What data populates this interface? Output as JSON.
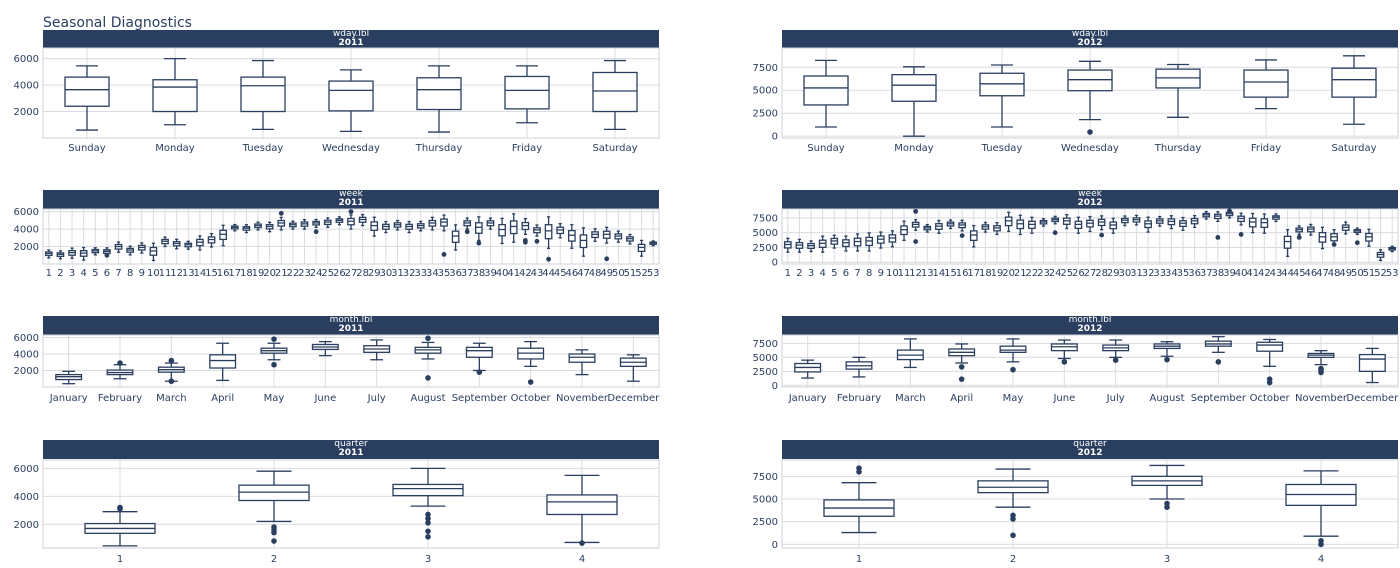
{
  "title": "Seasonal Diagnostics",
  "colors": {
    "strip": "#2a3f5f",
    "box": "#2a3f5f",
    "grid": "#d9dce1"
  },
  "chart_data": [
    {
      "type": "box",
      "row": 1,
      "col": 1,
      "strip": [
        "wday.lbl",
        "2011"
      ],
      "ylim": [
        0,
        6800
      ],
      "yticks": [
        2000,
        4000,
        6000
      ],
      "categories": [
        "Sunday",
        "Monday",
        "Tuesday",
        "Wednesday",
        "Thursday",
        "Friday",
        "Saturday"
      ],
      "boxes": [
        {
          "min": 600,
          "q1": 2400,
          "med": 3650,
          "q3": 4600,
          "max": 5450
        },
        {
          "min": 1000,
          "q1": 2000,
          "med": 3850,
          "q3": 4400,
          "max": 6000
        },
        {
          "min": 650,
          "q1": 2000,
          "med": 3950,
          "q3": 4600,
          "max": 5850
        },
        {
          "min": 500,
          "q1": 2050,
          "med": 3600,
          "q3": 4300,
          "max": 5150
        },
        {
          "min": 450,
          "q1": 2150,
          "med": 3650,
          "q3": 4550,
          "max": 5450
        },
        {
          "min": 1150,
          "q1": 2200,
          "med": 3600,
          "q3": 4650,
          "max": 5450
        },
        {
          "min": 650,
          "q1": 2000,
          "med": 3550,
          "q3": 4950,
          "max": 5850
        }
      ]
    },
    {
      "type": "box",
      "row": 1,
      "col": 2,
      "strip": [
        "wday.lbl",
        "2012"
      ],
      "ylim": [
        -200,
        9600
      ],
      "yticks": [
        0,
        2500,
        5000,
        7500
      ],
      "categories": [
        "Sunday",
        "Monday",
        "Tuesday",
        "Wednesday",
        "Thursday",
        "Friday",
        "Saturday"
      ],
      "boxes": [
        {
          "min": 1000,
          "q1": 3400,
          "med": 5250,
          "q3": 6550,
          "max": 8250
        },
        {
          "min": 0,
          "q1": 3800,
          "med": 5550,
          "q3": 6700,
          "max": 7550
        },
        {
          "min": 1000,
          "q1": 4400,
          "med": 5700,
          "q3": 6850,
          "max": 7750,
          "outliers": []
        },
        {
          "min": 1800,
          "q1": 4950,
          "med": 6150,
          "q3": 7200,
          "max": 8150,
          "outliers": [
            450
          ]
        },
        {
          "min": 2050,
          "q1": 5250,
          "med": 6350,
          "q3": 7300,
          "max": 7800
        },
        {
          "min": 3000,
          "q1": 4250,
          "med": 5900,
          "q3": 7200,
          "max": 8300
        },
        {
          "min": 1300,
          "q1": 4250,
          "med": 6150,
          "q3": 7400,
          "max": 8750
        }
      ]
    },
    {
      "type": "box",
      "row": 2,
      "col": 1,
      "strip": [
        "week",
        "2011"
      ],
      "ylim": [
        0,
        6300
      ],
      "yticks": [
        2000,
        4000,
        6000
      ],
      "categories": [
        "1",
        "2",
        "3",
        "4",
        "5",
        "6",
        "7",
        "8",
        "9",
        "10",
        "11",
        "12",
        "13",
        "14",
        "15",
        "16",
        "17",
        "18",
        "19",
        "20",
        "21",
        "22",
        "23",
        "24",
        "25",
        "26",
        "27",
        "28",
        "29",
        "30",
        "31",
        "32",
        "33",
        "34",
        "35",
        "36",
        "37",
        "38",
        "39",
        "40",
        "41",
        "42",
        "43",
        "44",
        "45",
        "46",
        "47",
        "48",
        "49",
        "50",
        "51",
        "52",
        "53"
      ],
      "medians": [
        1200,
        1100,
        1300,
        1250,
        1500,
        1450,
        2000,
        1600,
        1900,
        1500,
        2600,
        2350,
        2200,
        2500,
        2800,
        3400,
        4200,
        4100,
        4400,
        4300,
        4700,
        4500,
        4600,
        4700,
        4800,
        5000,
        4900,
        5100,
        4400,
        4300,
        4500,
        4300,
        4400,
        4700,
        4800,
        3200,
        4700,
        4200,
        4700,
        3950,
        4300,
        4400,
        3900,
        3800,
        3900,
        3300,
        2700,
        3400,
        3400,
        3200,
        2900,
        1900,
        2400
      ],
      "spreads": [
        500,
        500,
        650,
        800,
        450,
        500,
        650,
        550,
        650,
        1100,
        600,
        600,
        500,
        900,
        850,
        1300,
        400,
        500,
        500,
        600,
        800,
        500,
        600,
        500,
        600,
        500,
        900,
        700,
        1200,
        700,
        600,
        700,
        600,
        800,
        1000,
        1600,
        700,
        1500,
        700,
        1600,
        1800,
        1000,
        700,
        2000,
        900,
        1500,
        1800,
        800,
        1000,
        700,
        600,
        1000,
        300
      ],
      "outliers": [
        [],
        [],
        [],
        [],
        [],
        [
          1000
        ],
        [],
        [],
        [],
        [],
        [],
        [],
        [],
        [],
        [],
        [],
        [],
        [],
        [],
        [],
        [
          5800
        ],
        [],
        [],
        [
          3700
        ],
        [],
        [],
        [
          6000
        ],
        [],
        [],
        [],
        [],
        [],
        [],
        [],
        [
          1100
        ],
        [],
        [
          3700
        ],
        [
          2400
        ],
        [],
        [],
        [],
        [
          2500,
          2700
        ],
        [
          2600
        ],
        [
          550
        ],
        [],
        [],
        [],
        [],
        [
          600
        ],
        [],
        [],
        [],
        []
      ]
    },
    {
      "type": "box",
      "row": 2,
      "col": 2,
      "strip": [
        "week",
        "2012"
      ],
      "ylim": [
        -300,
        9000
      ],
      "yticks": [
        0,
        2500,
        5000,
        7500
      ],
      "categories": [
        "1",
        "2",
        "3",
        "4",
        "5",
        "6",
        "7",
        "8",
        "9",
        "10",
        "11",
        "12",
        "13",
        "14",
        "15",
        "16",
        "17",
        "18",
        "19",
        "20",
        "21",
        "22",
        "23",
        "24",
        "25",
        "26",
        "27",
        "28",
        "29",
        "30",
        "31",
        "32",
        "33",
        "34",
        "35",
        "36",
        "37",
        "38",
        "39",
        "40",
        "41",
        "42",
        "43",
        "44",
        "45",
        "46",
        "47",
        "48",
        "49",
        "50",
        "51",
        "52",
        "53"
      ],
      "medians": [
        3000,
        2900,
        2800,
        3200,
        3600,
        3300,
        3500,
        3600,
        3900,
        4100,
        5500,
        6400,
        5800,
        6100,
        6500,
        6300,
        4600,
        6000,
        5800,
        7000,
        6500,
        6400,
        6800,
        7200,
        7000,
        6400,
        6600,
        6800,
        6300,
        7100,
        7200,
        6500,
        7000,
        6900,
        6600,
        7000,
        8000,
        7800,
        8200,
        7400,
        6800,
        6700,
        7600,
        3500,
        5500,
        5600,
        4300,
        4300,
        5900,
        5300,
        4300,
        1300,
        2300
      ],
      "spreads": [
        1300,
        1200,
        1000,
        1500,
        1200,
        1400,
        1600,
        1700,
        1500,
        1500,
        1800,
        1000,
        700,
        1200,
        800,
        1000,
        2000,
        900,
        1100,
        1800,
        1800,
        1500,
        700,
        700,
        1300,
        1500,
        1400,
        1300,
        1400,
        900,
        900,
        1400,
        900,
        1200,
        1200,
        1100,
        700,
        900,
        700,
        1100,
        1800,
        1800,
        700,
        2500,
        800,
        1000,
        2000,
        1500,
        1100,
        600,
        1600,
        1000,
        500
      ],
      "outliers": [
        [],
        [],
        [],
        [],
        [],
        [],
        [],
        [],
        [],
        [],
        [],
        [
          3500,
          8600
        ],
        [],
        [],
        [],
        [
          4500
        ],
        [],
        [],
        [],
        [],
        [],
        [],
        [],
        [
          5000
        ],
        [],
        [],
        [],
        [
          4600
        ],
        [],
        [],
        [],
        [],
        [],
        [],
        [],
        [],
        [],
        [
          4200
        ],
        [
          8700
        ],
        [
          4700
        ],
        [],
        [],
        [],
        [],
        [
          4200
        ],
        [],
        [],
        [
          3000
        ],
        [],
        [
          3300
        ],
        [],
        [],
        []
      ]
    },
    {
      "type": "box",
      "row": 3,
      "col": 1,
      "strip": [
        "month.lbl",
        "2011"
      ],
      "ylim": [
        0,
        6300
      ],
      "yticks": [
        2000,
        4000,
        6000
      ],
      "categories": [
        "January",
        "February",
        "March",
        "April",
        "May",
        "June",
        "July",
        "August",
        "September",
        "October",
        "November",
        "December"
      ],
      "boxes": [
        {
          "min": 400,
          "q1": 900,
          "med": 1250,
          "q3": 1500,
          "max": 1900
        },
        {
          "min": 1000,
          "q1": 1500,
          "med": 1750,
          "q3": 2050,
          "max": 2700,
          "outliers": [
            2900
          ]
        },
        {
          "min": 700,
          "q1": 1800,
          "med": 2100,
          "q3": 2400,
          "max": 2900,
          "outliers": [
            3200,
            700
          ]
        },
        {
          "min": 800,
          "q1": 2300,
          "med": 3200,
          "q3": 3900,
          "max": 5300
        },
        {
          "min": 3300,
          "q1": 4100,
          "med": 4400,
          "q3": 4700,
          "max": 5300,
          "outliers": [
            5800,
            2700
          ]
        },
        {
          "min": 3800,
          "q1": 4550,
          "med": 4850,
          "q3": 5150,
          "max": 5500
        },
        {
          "min": 3300,
          "q1": 4200,
          "med": 4600,
          "q3": 5000,
          "max": 5700
        },
        {
          "min": 3400,
          "q1": 4100,
          "med": 4500,
          "q3": 4800,
          "max": 5400,
          "outliers": [
            5900,
            1100
          ]
        },
        {
          "min": 2000,
          "q1": 3600,
          "med": 4400,
          "q3": 4800,
          "max": 5300,
          "outliers": [
            1800
          ]
        },
        {
          "min": 2500,
          "q1": 3400,
          "med": 4100,
          "q3": 4700,
          "max": 5500,
          "outliers": [
            600
          ]
        },
        {
          "min": 1500,
          "q1": 3000,
          "med": 3600,
          "q3": 4000,
          "max": 4500
        },
        {
          "min": 700,
          "q1": 2500,
          "med": 3000,
          "q3": 3500,
          "max": 3900
        }
      ]
    },
    {
      "type": "box",
      "row": 3,
      "col": 2,
      "strip": [
        "month.lbl",
        "2012"
      ],
      "ylim": [
        -300,
        9000
      ],
      "yticks": [
        0,
        2500,
        5000,
        7500
      ],
      "categories": [
        "January",
        "February",
        "March",
        "April",
        "May",
        "June",
        "July",
        "August",
        "September",
        "October",
        "November",
        "December"
      ],
      "boxes": [
        {
          "min": 1300,
          "q1": 2400,
          "med": 3200,
          "q3": 3900,
          "max": 4500
        },
        {
          "min": 1500,
          "q1": 2900,
          "med": 3500,
          "q3": 4200,
          "max": 5000
        },
        {
          "min": 3200,
          "q1": 4600,
          "med": 5400,
          "q3": 6300,
          "max": 8300
        },
        {
          "min": 4000,
          "q1": 5300,
          "med": 5900,
          "q3": 6500,
          "max": 7400,
          "outliers": [
            3300,
            1100
          ]
        },
        {
          "min": 4200,
          "q1": 5900,
          "med": 6300,
          "q3": 7000,
          "max": 8300,
          "outliers": [
            2800
          ]
        },
        {
          "min": 4800,
          "q1": 6200,
          "med": 6900,
          "q3": 7400,
          "max": 8100,
          "outliers": [
            4200
          ]
        },
        {
          "min": 5000,
          "q1": 6200,
          "med": 6700,
          "q3": 7200,
          "max": 8100,
          "outliers": [
            4500
          ]
        },
        {
          "min": 5200,
          "q1": 6600,
          "med": 7000,
          "q3": 7400,
          "max": 7800,
          "outliers": [
            4600
          ]
        },
        {
          "min": 5900,
          "q1": 7000,
          "med": 7400,
          "q3": 7900,
          "max": 8700,
          "outliers": [
            4200
          ]
        },
        {
          "min": 3400,
          "q1": 6100,
          "med": 7200,
          "q3": 7700,
          "max": 8200,
          "outliers": [
            1100,
            500
          ]
        },
        {
          "min": 3700,
          "q1": 5000,
          "med": 5400,
          "q3": 5700,
          "max": 6200,
          "outliers": [
            3000,
            2300,
            2700
          ]
        },
        {
          "min": 500,
          "q1": 2500,
          "med": 4700,
          "q3": 5500,
          "max": 6600
        }
      ]
    },
    {
      "type": "box",
      "row": 4,
      "col": 1,
      "strip": [
        "quarter",
        "2011"
      ],
      "ylim": [
        300,
        6600
      ],
      "yticks": [
        2000,
        4000,
        6000
      ],
      "categories": [
        "1",
        "2",
        "3",
        "4"
      ],
      "boxes": [
        {
          "min": 450,
          "q1": 1350,
          "med": 1700,
          "q3": 2050,
          "max": 2900,
          "outliers": [
            3100,
            3200
          ]
        },
        {
          "min": 2200,
          "q1": 3700,
          "med": 4300,
          "q3": 4800,
          "max": 5800,
          "outliers": [
            1800,
            1600,
            1400,
            800
          ]
        },
        {
          "min": 3300,
          "q1": 4050,
          "med": 4550,
          "q3": 4850,
          "max": 6000,
          "outliers": [
            2700,
            2400,
            2100,
            1500,
            1100
          ]
        },
        {
          "min": 700,
          "q1": 2700,
          "med": 3600,
          "q3": 4100,
          "max": 5500,
          "outliers": [
            650
          ]
        }
      ]
    },
    {
      "type": "box",
      "row": 4,
      "col": 2,
      "strip": [
        "quarter",
        "2012"
      ],
      "ylim": [
        -400,
        9300
      ],
      "yticks": [
        0,
        2500,
        5000,
        7500
      ],
      "categories": [
        "1",
        "2",
        "3",
        "4"
      ],
      "boxes": [
        {
          "min": 1300,
          "q1": 3100,
          "med": 4000,
          "q3": 4900,
          "max": 6800,
          "outliers": [
            8000,
            8400
          ]
        },
        {
          "min": 4100,
          "q1": 5700,
          "med": 6300,
          "q3": 7000,
          "max": 8300,
          "outliers": [
            3200,
            2800,
            1000
          ]
        },
        {
          "min": 5000,
          "q1": 6500,
          "med": 7000,
          "q3": 7500,
          "max": 8700,
          "outliers": [
            4500,
            4100
          ]
        },
        {
          "min": 900,
          "q1": 4300,
          "med": 5500,
          "q3": 6600,
          "max": 8100,
          "outliers": [
            400,
            0
          ]
        }
      ]
    }
  ]
}
